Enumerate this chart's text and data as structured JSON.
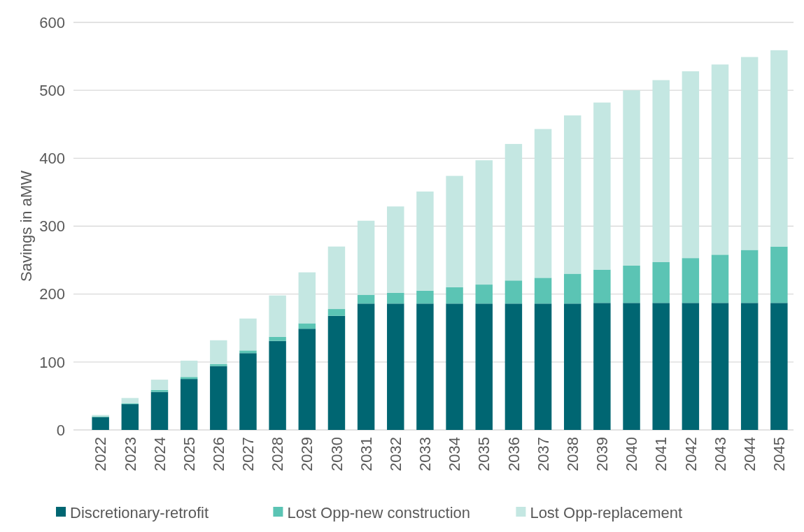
{
  "chart_data": {
    "type": "bar",
    "stacked": true,
    "ylabel": "Savings in aMW",
    "categories": [
      "2022",
      "2023",
      "2024",
      "2025",
      "2026",
      "2027",
      "2028",
      "2029",
      "2030",
      "2031",
      "2032",
      "2033",
      "2034",
      "2035",
      "2036",
      "2037",
      "2038",
      "2039",
      "2040",
      "2041",
      "2042",
      "2043",
      "2044",
      "2045"
    ],
    "series": [
      {
        "name": "Discretionary-retrofit",
        "color": "#006672",
        "values": [
          19,
          38,
          56,
          75,
          94,
          113,
          131,
          149,
          168,
          186,
          186,
          186,
          186,
          186,
          186,
          186,
          186,
          187,
          187,
          187,
          187,
          187,
          187,
          187
        ]
      },
      {
        "name": "Lost Opp-new construction",
        "color": "#5bc4b4",
        "values": [
          1,
          1,
          3,
          3,
          3,
          4,
          6,
          8,
          10,
          13,
          16,
          19,
          24,
          28,
          34,
          38,
          44,
          49,
          55,
          60,
          66,
          71,
          78,
          83
        ]
      },
      {
        "name": "Lost Opp-replacement",
        "color": "#c4e7e2",
        "values": [
          2,
          8,
          15,
          24,
          35,
          47,
          61,
          75,
          92,
          109,
          127,
          146,
          164,
          183,
          201,
          219,
          233,
          246,
          258,
          268,
          275,
          280,
          284,
          289
        ]
      }
    ],
    "ylim": [
      0,
      600
    ],
    "yticks": [
      0,
      100,
      200,
      300,
      400,
      500,
      600
    ],
    "grid": "y",
    "legend": "bottom"
  }
}
